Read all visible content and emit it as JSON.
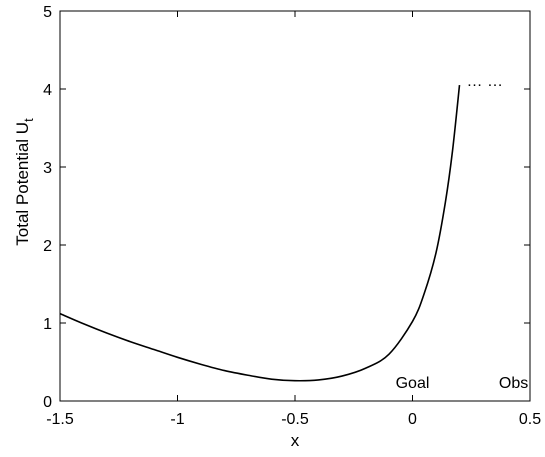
{
  "chart_data": {
    "type": "line",
    "title": "",
    "xlabel": "x",
    "ylabel": "Total Potential U",
    "ylabel_subscript": "t",
    "xlim": [
      -1.5,
      0.5
    ],
    "ylim": [
      0,
      5
    ],
    "xticks": [
      -1.5,
      -1,
      -0.5,
      0,
      0.5
    ],
    "xtick_labels": [
      "-1.5",
      "-1",
      "-0.5",
      "0",
      "0.5"
    ],
    "yticks": [
      0,
      1,
      2,
      3,
      4,
      5
    ],
    "ytick_labels": [
      "0",
      "1",
      "2",
      "3",
      "4",
      "5"
    ],
    "grid": false,
    "series": [
      {
        "x": [
          -1.5,
          -1.4,
          -1.3,
          -1.2,
          -1.1,
          -1.0,
          -0.9,
          -0.8,
          -0.7,
          -0.6,
          -0.5,
          -0.4,
          -0.3,
          -0.2,
          -0.1,
          0.0,
          0.05,
          0.1,
          0.14,
          0.17,
          0.2
        ],
        "values": [
          1.12,
          0.99,
          0.87,
          0.76,
          0.66,
          0.56,
          0.47,
          0.39,
          0.33,
          0.28,
          0.26,
          0.27,
          0.32,
          0.42,
          0.6,
          1.02,
          1.38,
          1.9,
          2.55,
          3.2,
          4.05
        ]
      }
    ],
    "continuation": {
      "label": "… …",
      "y": 4.1,
      "x_start": 0.23,
      "x_end": 0.42
    },
    "annotations": [
      {
        "text": "Goal",
        "x": 0.0
      },
      {
        "text": "Obs",
        "x": 0.43
      }
    ]
  }
}
